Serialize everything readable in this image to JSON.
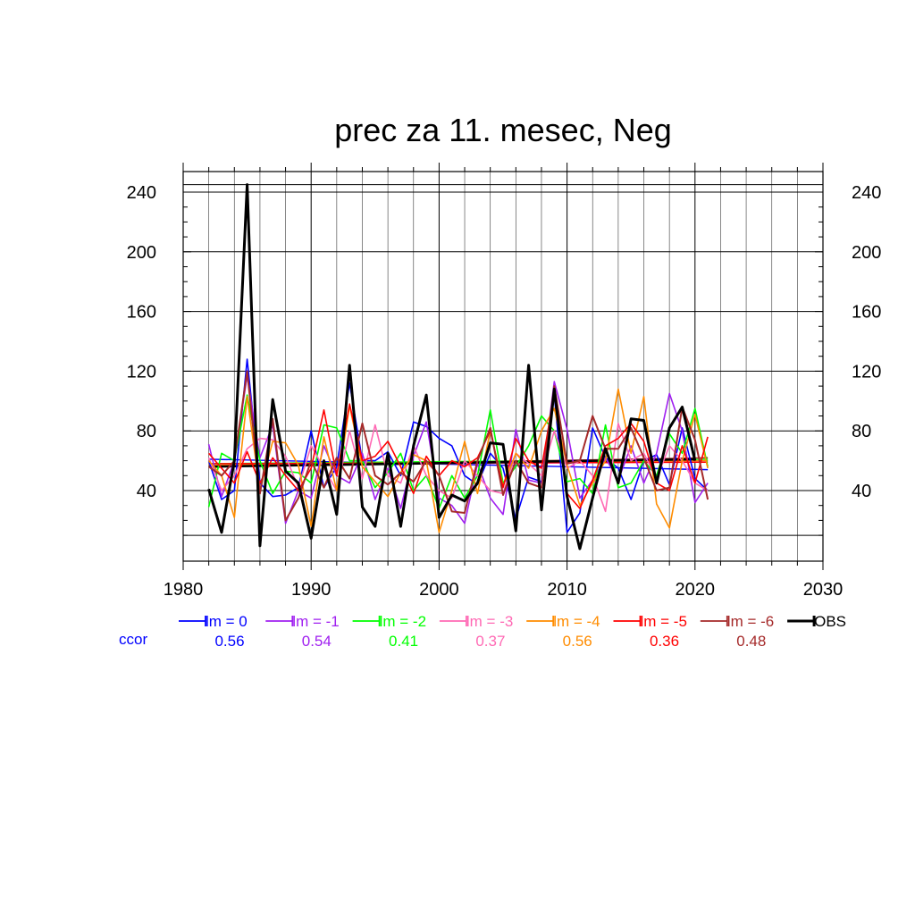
{
  "chart_data": {
    "type": "line",
    "title": "prec za 11. mesec, Neg",
    "xlim": [
      1980,
      2030
    ],
    "ylim": [
      0,
      250
    ],
    "x_ticks": [
      1980,
      1990,
      2000,
      2010,
      2020,
      2030
    ],
    "x_tick_labels": [
      "1980",
      "1990",
      "2000",
      "2010",
      "2020",
      "2030"
    ],
    "y_ticks": [
      40,
      80,
      120,
      160,
      200,
      240
    ],
    "y_tick_labels": [
      "40",
      "80",
      "120",
      "160",
      "200",
      "240"
    ],
    "grid": true,
    "legend_position": "bottom",
    "ccor_label": "ccor",
    "ccor_color": "#0000ff",
    "series": [
      {
        "name": "lm = 0",
        "color": "#0000ff",
        "ccor": "0.56",
        "width": 1.6,
        "x": [
          1982,
          1983,
          1984,
          1985,
          1986,
          1987,
          1988,
          1989,
          1990,
          1991,
          1992,
          1993,
          1994,
          1995,
          1996,
          1997,
          1998,
          1999,
          2000,
          2001,
          2002,
          2003,
          2004,
          2005,
          2006,
          2007,
          2008,
          2009,
          2010,
          2011,
          2012,
          2013,
          2014,
          2015,
          2016,
          2017,
          2018,
          2019,
          2020,
          2021
        ],
        "y": [
          60,
          34,
          40,
          128,
          45,
          36,
          37,
          42,
          80,
          42,
          56,
          112,
          60,
          60,
          66,
          50,
          86,
          83,
          75,
          70,
          50,
          44,
          65,
          55,
          21,
          49,
          46,
          104,
          12,
          25,
          82,
          62,
          55,
          34,
          60,
          64,
          44,
          82,
          48,
          40
        ],
        "trend": [
          61,
          54
        ]
      },
      {
        "name": "lm = -1",
        "color": "#a020f0",
        "ccor": "0.54",
        "width": 1.6,
        "x": [
          1982,
          1983,
          1984,
          1985,
          1986,
          1987,
          1988,
          1989,
          1990,
          1991,
          1992,
          1993,
          1994,
          1995,
          1996,
          1997,
          1998,
          1999,
          2000,
          2001,
          2002,
          2003,
          2004,
          2005,
          2006,
          2007,
          2008,
          2009,
          2010,
          2011,
          2012,
          2013,
          2014,
          2015,
          2016,
          2017,
          2018,
          2019,
          2020,
          2021
        ],
        "y": [
          71,
          36,
          60,
          117,
          62,
          84,
          18,
          40,
          35,
          70,
          50,
          45,
          65,
          34,
          55,
          28,
          63,
          86,
          35,
          30,
          18,
          58,
          35,
          24,
          81,
          47,
          45,
          113,
          81,
          35,
          47,
          62,
          47,
          70,
          45,
          65,
          105,
          80,
          32,
          45
        ],
        "trend": [
          58,
          60
        ]
      },
      {
        "name": "lm = -2",
        "color": "#00ff00",
        "ccor": "0.41",
        "width": 1.6,
        "x": [
          1982,
          1983,
          1984,
          1985,
          1986,
          1987,
          1988,
          1989,
          1990,
          1991,
          1992,
          1993,
          1994,
          1995,
          1996,
          1997,
          1998,
          1999,
          2000,
          2001,
          2002,
          2003,
          2004,
          2005,
          2006,
          2007,
          2008,
          2009,
          2010,
          2011,
          2012,
          2013,
          2014,
          2015,
          2016,
          2017,
          2018,
          2019,
          2020,
          2021
        ],
        "y": [
          29,
          65,
          60,
          104,
          60,
          38,
          53,
          52,
          45,
          84,
          82,
          60,
          60,
          42,
          52,
          65,
          40,
          50,
          28,
          50,
          35,
          50,
          94,
          45,
          56,
          70,
          90,
          80,
          46,
          48,
          38,
          84,
          42,
          45,
          60,
          50,
          78,
          65,
          95,
          56
        ],
        "trend": [
          58,
          61
        ]
      },
      {
        "name": "lm = -3",
        "color": "#ff69b4",
        "ccor": "0.37",
        "width": 1.6,
        "x": [
          1982,
          1983,
          1984,
          1985,
          1986,
          1987,
          1988,
          1989,
          1990,
          1991,
          1992,
          1993,
          1994,
          1995,
          1996,
          1997,
          1998,
          1999,
          2000,
          2001,
          2002,
          2003,
          2004,
          2005,
          2006,
          2007,
          2008,
          2009,
          2010,
          2011,
          2012,
          2013,
          2014,
          2015,
          2016,
          2017,
          2018,
          2019,
          2020,
          2021
        ],
        "y": [
          62,
          40,
          50,
          68,
          75,
          74,
          63,
          42,
          70,
          55,
          40,
          80,
          48,
          84,
          50,
          45,
          70,
          50,
          40,
          35,
          60,
          50,
          40,
          38,
          65,
          58,
          50,
          80,
          55,
          60,
          50,
          26,
          85,
          60,
          65,
          48,
          70,
          60,
          45,
          40
        ],
        "trend": [
          57,
          59
        ]
      },
      {
        "name": "lm = -4",
        "color": "#ff8c00",
        "ccor": "0.56",
        "width": 1.6,
        "x": [
          1982,
          1983,
          1984,
          1985,
          1986,
          1987,
          1988,
          1989,
          1990,
          1991,
          1992,
          1993,
          1994,
          1995,
          1996,
          1997,
          1998,
          1999,
          2000,
          2001,
          2002,
          2003,
          2004,
          2005,
          2006,
          2007,
          2008,
          2009,
          2010,
          2011,
          2012,
          2013,
          2014,
          2015,
          2016,
          2017,
          2018,
          2019,
          2020,
          2021
        ],
        "y": [
          60,
          50,
          22,
          103,
          40,
          73,
          72,
          57,
          16,
          76,
          40,
          97,
          56,
          46,
          36,
          52,
          64,
          60,
          12,
          40,
          73,
          38,
          80,
          43,
          65,
          55,
          80,
          95,
          57,
          30,
          45,
          60,
          108,
          65,
          103,
          31,
          15,
          60,
          91,
          55
        ],
        "trend": [
          57,
          60
        ]
      },
      {
        "name": "lm = -5",
        "color": "#ff0000",
        "ccor": "0.36",
        "width": 1.6,
        "x": [
          1982,
          1983,
          1984,
          1985,
          1986,
          1987,
          1988,
          1989,
          1990,
          1991,
          1992,
          1993,
          1994,
          1995,
          1996,
          1997,
          1998,
          1999,
          2000,
          2001,
          2002,
          2003,
          2004,
          2005,
          2006,
          2007,
          2008,
          2009,
          2010,
          2011,
          2012,
          2013,
          2014,
          2015,
          2016,
          2017,
          2018,
          2019,
          2020,
          2021
        ],
        "y": [
          65,
          55,
          45,
          66,
          45,
          62,
          50,
          40,
          55,
          94,
          50,
          98,
          60,
          63,
          73,
          56,
          38,
          63,
          50,
          60,
          56,
          62,
          80,
          42,
          75,
          60,
          55,
          105,
          38,
          28,
          47,
          70,
          75,
          85,
          73,
          45,
          40,
          70,
          45,
          76
        ],
        "trend": [
          58,
          59
        ]
      },
      {
        "name": "lm = -6",
        "color": "#a52a2a",
        "ccor": "0.48",
        "width": 2.0,
        "x": [
          1982,
          1983,
          1984,
          1985,
          1986,
          1987,
          1988,
          1989,
          1990,
          1991,
          1992,
          1993,
          1994,
          1995,
          1996,
          1997,
          1998,
          1999,
          2000,
          2001,
          2002,
          2003,
          2004,
          2005,
          2006,
          2007,
          2008,
          2009,
          2010,
          2011,
          2012,
          2013,
          2014,
          2015,
          2016,
          2017,
          2018,
          2019,
          2020,
          2021
        ],
        "y": [
          56,
          50,
          60,
          120,
          38,
          88,
          20,
          35,
          60,
          42,
          62,
          48,
          85,
          50,
          44,
          52,
          46,
          60,
          50,
          26,
          25,
          60,
          82,
          37,
          60,
          45,
          42,
          110,
          58,
          60,
          90,
          68,
          68,
          82,
          62,
          40,
          42,
          96,
          74,
          34
        ],
        "trend": [
          56,
          62
        ]
      },
      {
        "name": "OBS",
        "color": "#000000",
        "ccor": "",
        "width": 3.0,
        "x": [
          1982,
          1983,
          1984,
          1985,
          1986,
          1987,
          1988,
          1989,
          1990,
          1991,
          1992,
          1993,
          1994,
          1995,
          1996,
          1997,
          1998,
          1999,
          2000,
          2001,
          2002,
          2003,
          2004,
          2005,
          2006,
          2007,
          2008,
          2009,
          2010,
          2011,
          2012,
          2013,
          2014,
          2015,
          2016,
          2017,
          2018,
          2019,
          2020,
          2021
        ],
        "y": [
          41,
          12,
          60,
          245,
          3,
          101,
          53,
          45,
          8,
          60,
          24,
          124,
          29,
          16,
          65,
          16,
          70,
          104,
          22,
          37,
          33,
          45,
          72,
          71,
          13,
          124,
          27,
          108,
          36,
          1,
          35,
          68,
          45,
          88,
          87,
          45,
          82,
          96,
          60,
          null
        ],
        "trend": [
          56,
          61
        ]
      }
    ]
  }
}
